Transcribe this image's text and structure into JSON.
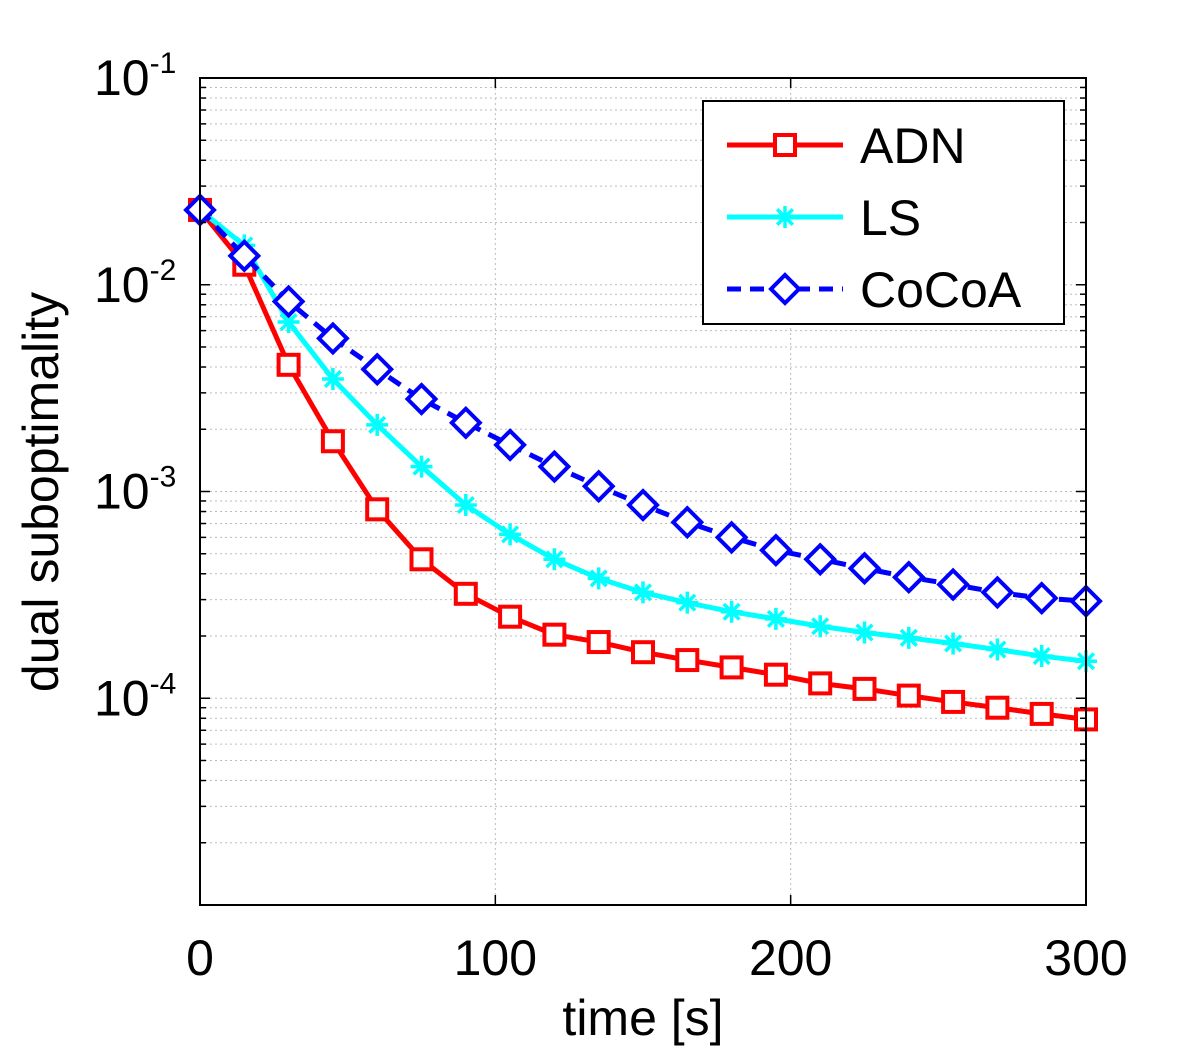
{
  "chart_data": {
    "type": "line",
    "title": "",
    "xlabel": "time [s]",
    "ylabel": "dual suboptimality",
    "xlim": [
      0,
      300
    ],
    "ylim": [
      1e-05,
      0.1
    ],
    "yscale": "log",
    "grid": true,
    "legend_position": "top-right",
    "x_ticks": [
      0,
      100,
      200,
      300
    ],
    "y_ticks": [
      {
        "value": 0.1,
        "base": "10",
        "exp": "-1"
      },
      {
        "value": 0.01,
        "base": "10",
        "exp": "-2"
      },
      {
        "value": 0.001,
        "base": "10",
        "exp": "-3"
      },
      {
        "value": 0.0001,
        "base": "10",
        "exp": "-4"
      }
    ],
    "x": [
      0,
      15,
      30,
      45,
      60,
      75,
      90,
      105,
      120,
      135,
      150,
      165,
      180,
      195,
      210,
      225,
      240,
      255,
      270,
      285,
      300
    ],
    "series": [
      {
        "name": "ADN",
        "color": "#ff0000",
        "marker": "square",
        "line": "solid",
        "values": [
          0.023,
          0.0125,
          0.0041,
          0.00175,
          0.00082,
          0.00047,
          0.00032,
          0.000248,
          0.000203,
          0.000187,
          0.000167,
          0.000153,
          0.000141,
          0.00013,
          0.000118,
          0.000111,
          0.000103,
          9.6e-05,
          9e-05,
          8.4e-05,
          7.9e-05
        ]
      },
      {
        "name": "LS",
        "color": "#00ffff",
        "marker": "asterisk",
        "line": "solid",
        "values": [
          0.023,
          0.0155,
          0.0066,
          0.0035,
          0.0021,
          0.00132,
          0.00086,
          0.00062,
          0.00047,
          0.00038,
          0.000325,
          0.00029,
          0.000262,
          0.000242,
          0.000223,
          0.000208,
          0.000196,
          0.000184,
          0.000172,
          0.00016,
          0.000151
        ]
      },
      {
        "name": "CoCoA",
        "color": "#0000ff",
        "marker": "diamond",
        "line": "dashed",
        "values": [
          0.023,
          0.0138,
          0.0083,
          0.0055,
          0.0039,
          0.0028,
          0.00215,
          0.00168,
          0.00132,
          0.00106,
          0.00086,
          0.00071,
          0.0006,
          0.00052,
          0.00047,
          0.000425,
          0.000385,
          0.000355,
          0.000325,
          0.000305,
          0.000295
        ]
      }
    ]
  }
}
